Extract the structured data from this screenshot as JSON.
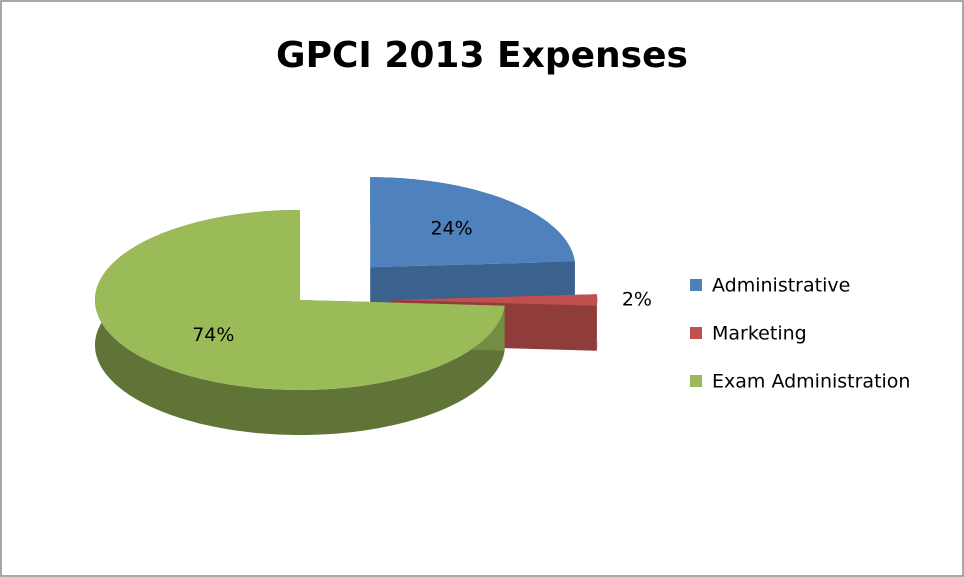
{
  "chart_data": {
    "type": "pie",
    "title": "GPCI 2013 Expenses",
    "categories": [
      "Administrative",
      "Marketing",
      "Exam Administration"
    ],
    "values": [
      24,
      2,
      74
    ],
    "value_labels": [
      "24%",
      "2%",
      "74%"
    ],
    "colors": [
      "#4f81bd",
      "#c0504d",
      "#9bbb59"
    ],
    "legend": "right"
  }
}
